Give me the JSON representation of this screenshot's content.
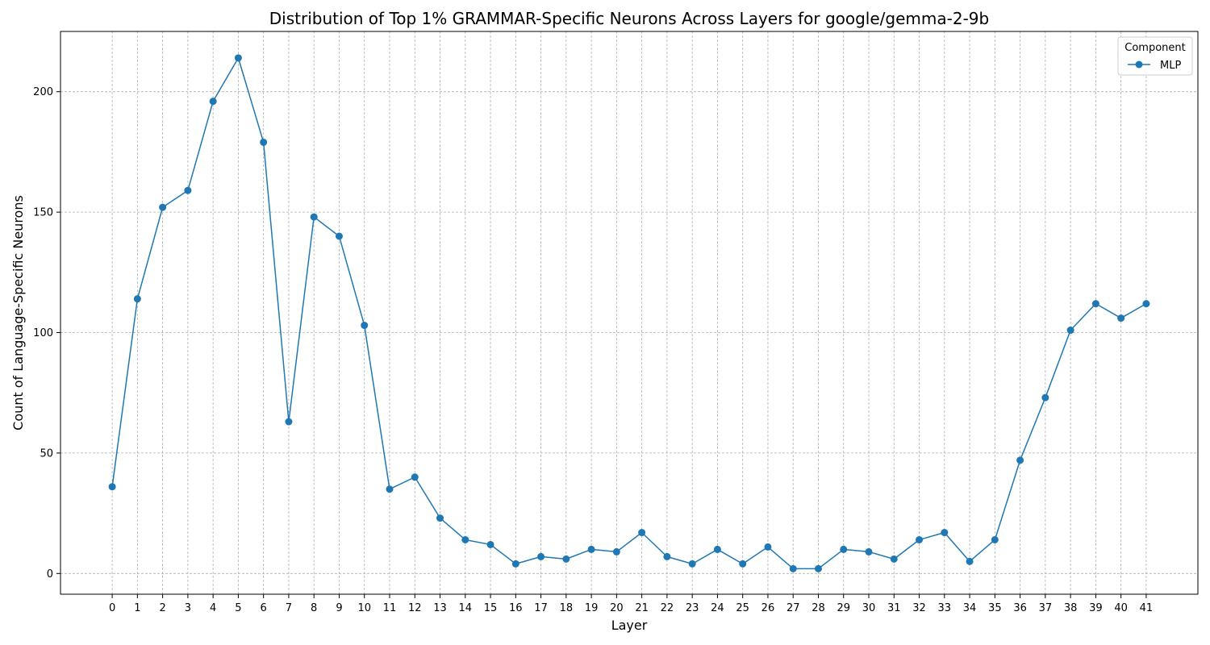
{
  "chart_data": {
    "type": "line",
    "title": "Distribution of Top 1% GRAMMAR-Specific Neurons Across Layers for google/gemma-2-9b",
    "xlabel": "Layer",
    "ylabel": "Count of Language-Specific Neurons",
    "x": [
      0,
      1,
      2,
      3,
      4,
      5,
      6,
      7,
      8,
      9,
      10,
      11,
      12,
      13,
      14,
      15,
      16,
      17,
      18,
      19,
      20,
      21,
      22,
      23,
      24,
      25,
      26,
      27,
      28,
      29,
      30,
      31,
      32,
      33,
      34,
      35,
      36,
      37,
      38,
      39,
      40,
      41
    ],
    "series": [
      {
        "name": "MLP",
        "color": "#1f77b4",
        "values": [
          36,
          114,
          152,
          159,
          196,
          214,
          179,
          63,
          148,
          140,
          103,
          35,
          40,
          23,
          14,
          12,
          4,
          7,
          6,
          10,
          9,
          17,
          7,
          4,
          10,
          4,
          11,
          2,
          2,
          10,
          9,
          6,
          14,
          17,
          5,
          14,
          47,
          73,
          101,
          112,
          106,
          112
        ]
      }
    ],
    "xlim": [
      -2.05,
      43.05
    ],
    "ylim": [
      -8.6,
      225
    ],
    "yticks": [
      0,
      50,
      100,
      150,
      200
    ],
    "grid": true,
    "legend": {
      "title": "Component",
      "placement": "top-right"
    }
  }
}
